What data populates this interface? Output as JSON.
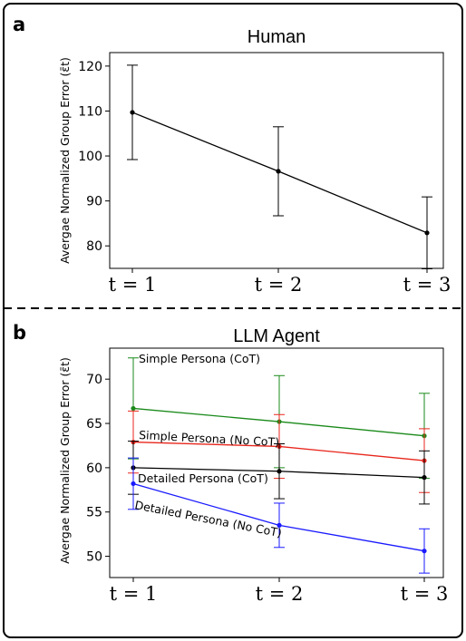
{
  "chart_data": [
    {
      "type": "line",
      "panel": "a",
      "title": "Human",
      "ylabel": "Avergae Normalized Group Error (ε̄t)",
      "categories": [
        "t = 1",
        "t = 2",
        "t = 3"
      ],
      "ylim": [
        75,
        123
      ],
      "yticks": [
        80,
        90,
        100,
        110,
        120
      ],
      "series": [
        {
          "values": [
            109.7,
            96.6,
            82.9
          ],
          "err": [
            10.5,
            9.9,
            8.0
          ],
          "color": "#000000"
        }
      ]
    },
    {
      "type": "line",
      "panel": "b",
      "title": "LLM Agent",
      "ylabel": "Avergae Normalized Group Error (ε̄t)",
      "categories": [
        "t = 1",
        "t = 2",
        "t = 3"
      ],
      "ylim": [
        47.6,
        73.5
      ],
      "yticks": [
        50,
        55,
        60,
        65,
        70
      ],
      "series": [
        {
          "name": "Simple Persona (CoT)",
          "values": [
            66.7,
            65.2,
            63.6
          ],
          "err": [
            5.7,
            5.2,
            4.8
          ],
          "color": "#1a8a1a"
        },
        {
          "name": "Simple Persona (No CoT)",
          "values": [
            62.9,
            62.4,
            60.8
          ],
          "err": [
            3.5,
            3.6,
            3.6
          ],
          "color": "#e8261c"
        },
        {
          "name": "Detailed Persona (CoT)",
          "values": [
            60.0,
            59.6,
            58.9
          ],
          "err": [
            3.0,
            3.1,
            3.0
          ],
          "color": "#000000"
        },
        {
          "name": "Detailed Persona (No CoT)",
          "values": [
            58.2,
            53.5,
            50.6
          ],
          "err": [
            2.9,
            2.5,
            2.5
          ],
          "color": "#1a1aff"
        }
      ]
    }
  ]
}
